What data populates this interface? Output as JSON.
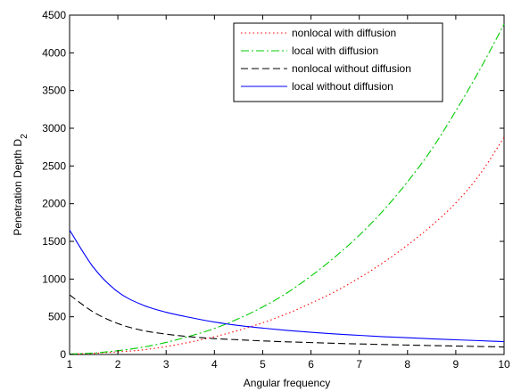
{
  "chart_data": {
    "type": "line",
    "title": "",
    "xlabel": "Angular frequency",
    "ylabel": {
      "main": "Penetration Depth D",
      "sub": "2"
    },
    "xlim": [
      1,
      10
    ],
    "ylim": [
      0,
      4500
    ],
    "xticks": [
      1,
      2,
      3,
      4,
      5,
      6,
      7,
      8,
      9,
      10
    ],
    "yticks": [
      0,
      500,
      1000,
      1500,
      2000,
      2500,
      3000,
      3500,
      4000,
      4500
    ],
    "grid": false,
    "legend_position": "top-right",
    "x": [
      1,
      1.5,
      2,
      2.5,
      3,
      3.5,
      4,
      4.5,
      5,
      5.5,
      6,
      6.5,
      7,
      7.5,
      8,
      8.5,
      9,
      9.5,
      10
    ],
    "series": [
      {
        "name": "nonlocal with diffusion",
        "color": "#ff0000",
        "dash": "dotted",
        "values": [
          5,
          15,
          35,
          60,
          105,
          165,
          235,
          320,
          420,
          540,
          680,
          835,
          1015,
          1220,
          1450,
          1710,
          2010,
          2390,
          2880
        ]
      },
      {
        "name": "local with diffusion",
        "color": "#00cc00",
        "dash": "dashdot",
        "values": [
          5,
          20,
          50,
          95,
          160,
          245,
          345,
          475,
          630,
          815,
          1040,
          1295,
          1580,
          1910,
          2290,
          2720,
          3230,
          3780,
          4380
        ]
      },
      {
        "name": "nonlocal without diffusion",
        "color": "#000000",
        "dash": "dashed",
        "values": [
          790,
          560,
          410,
          320,
          270,
          235,
          210,
          195,
          180,
          168,
          158,
          148,
          140,
          132,
          125,
          118,
          112,
          106,
          100
        ]
      },
      {
        "name": "local without diffusion",
        "color": "#0000ff",
        "dash": "solid",
        "values": [
          1650,
          1150,
          830,
          660,
          560,
          490,
          430,
          385,
          350,
          320,
          295,
          272,
          254,
          236,
          222,
          208,
          195,
          183,
          170
        ]
      }
    ]
  }
}
